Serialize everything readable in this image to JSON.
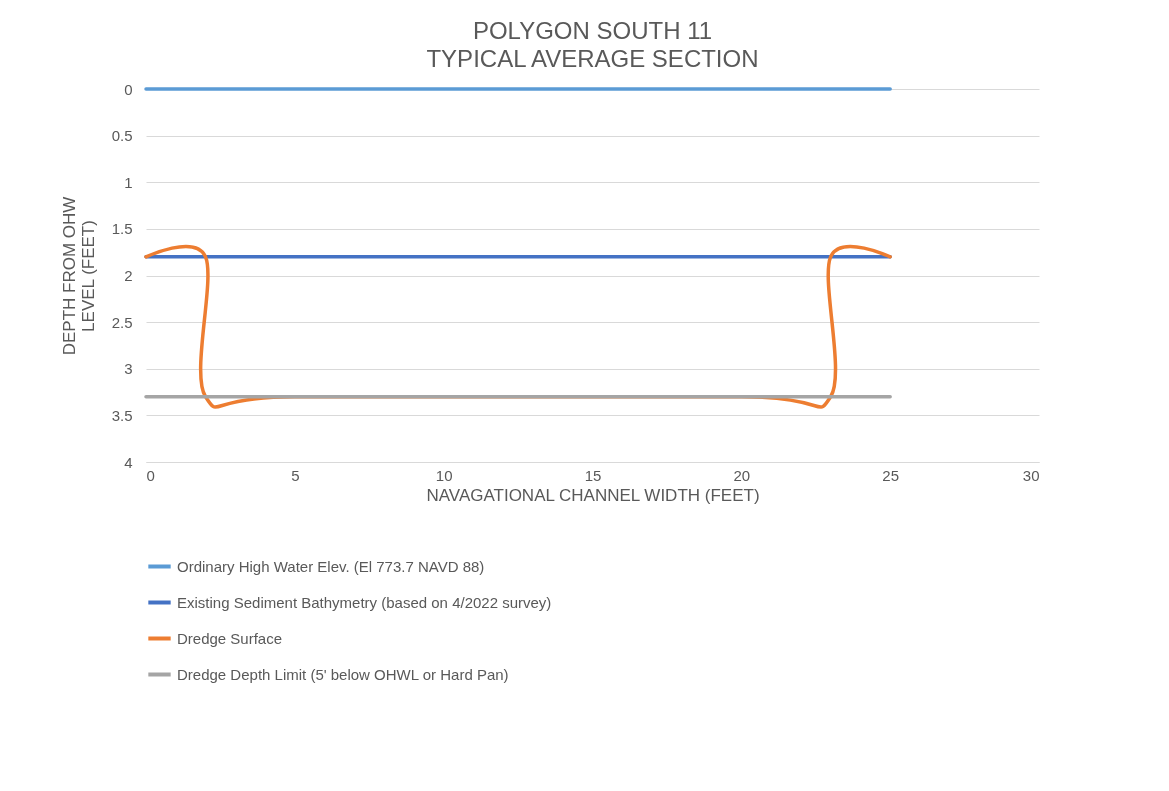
{
  "chart_data": {
    "type": "line",
    "title": "POLYGON SOUTH 11",
    "subtitle": "TYPICAL AVERAGE SECTION",
    "xlabel": "NAVAGATIONAL CHANNEL WIDTH (FEET)",
    "ylabel": "DEPTH FROM OHW LEVEL (FEET)",
    "series": [
      {
        "name": "Ordinary High Water Elev. (El 773.7 NAVD 88)",
        "color": "#5b9bd5",
        "x": [
          0,
          25
        ],
        "values": [
          0,
          0
        ]
      },
      {
        "name": "Existing Sediment Bathymetry (based on 4/2022 survey)",
        "color": "#4472c4",
        "x": [
          0,
          25
        ],
        "values": [
          1.8,
          1.8
        ]
      },
      {
        "name": "Dredge Surface",
        "color": "#ed7d31",
        "x": [
          0,
          2,
          2,
          5,
          20,
          23,
          23,
          25
        ],
        "values": [
          1.8,
          1.8,
          3.3,
          3.3,
          3.3,
          3.3,
          1.8,
          1.8
        ]
      },
      {
        "name": "Dredge Depth Limit (5' below OHWL or Hard Pan)",
        "color": "#a5a5a5",
        "x": [
          0,
          25
        ],
        "values": [
          3.3,
          3.3
        ]
      }
    ],
    "xlim": [
      0,
      30
    ],
    "xticks": [
      0,
      5,
      10,
      15,
      20,
      25,
      30
    ],
    "ylim": [
      4,
      0
    ],
    "yticks": [
      0,
      0.5,
      1,
      1.5,
      2,
      2.5,
      3,
      3.5,
      4
    ],
    "grid": "y",
    "legend": "bottom",
    "marker": "none",
    "line_style": "solid"
  }
}
